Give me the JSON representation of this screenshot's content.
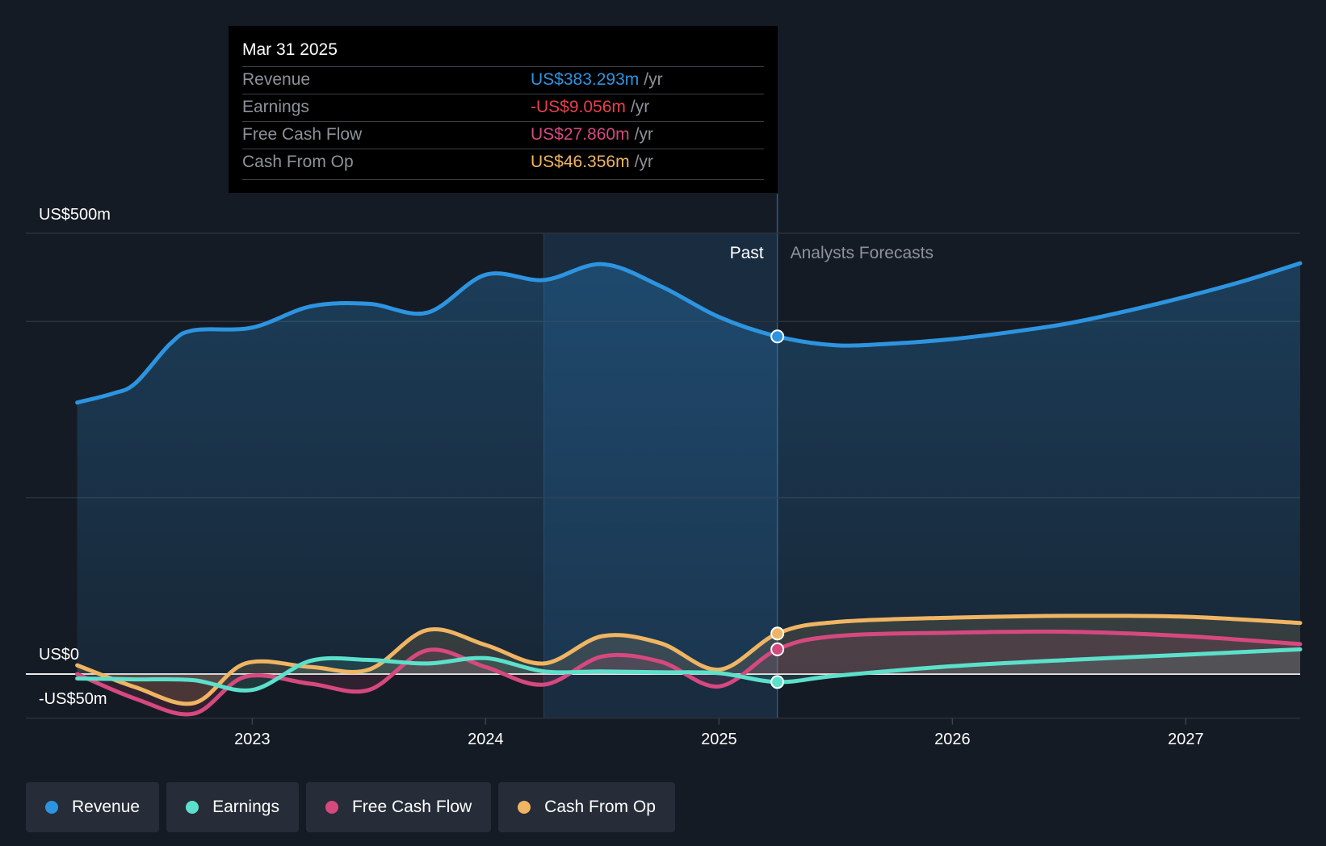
{
  "tooltip": {
    "date": "Mar 31 2025",
    "rows": [
      {
        "label": "Revenue",
        "value": "US$383.293m",
        "unit": "/yr",
        "color": "#2d94e0"
      },
      {
        "label": "Earnings",
        "value": "-US$9.056m",
        "unit": "/yr",
        "color": "#e8414d"
      },
      {
        "label": "Free Cash Flow",
        "value": "US$27.860m",
        "unit": "/yr",
        "color": "#d5497f"
      },
      {
        "label": "Cash From Op",
        "value": "US$46.356m",
        "unit": "/yr",
        "color": "#f0b563"
      }
    ]
  },
  "legend": [
    {
      "label": "Revenue",
      "color": "#2d94e0"
    },
    {
      "label": "Earnings",
      "color": "#5ce0cb"
    },
    {
      "label": "Free Cash Flow",
      "color": "#d5497f"
    },
    {
      "label": "Cash From Op",
      "color": "#f0b563"
    }
  ],
  "chart_data": {
    "type": "line",
    "y_labels": [
      "US$500m",
      "US$0",
      "-US$50m"
    ],
    "ylim": [
      -50,
      500
    ],
    "y_gridlines": [
      500,
      400,
      200,
      0,
      -50
    ],
    "x_ticks": [
      2023,
      2024,
      2025,
      2026,
      2027
    ],
    "xlim": [
      2022.03,
      2027.49
    ],
    "past_label": "Past",
    "forecast_label": "Analysts Forecasts",
    "past_end": 2025.25,
    "shaded_past_start": 2024.25,
    "series": [
      {
        "name": "Revenue",
        "color": "#2d94e0",
        "x": [
          2022.25,
          2022.4,
          2022.5,
          2022.65,
          2022.75,
          2023.0,
          2023.25,
          2023.5,
          2023.75,
          2024.0,
          2024.25,
          2024.5,
          2024.75,
          2025.0,
          2025.25,
          2025.5,
          2025.75,
          2026.0,
          2026.25,
          2026.5,
          2026.75,
          2027.0,
          2027.25,
          2027.49
        ],
        "y": [
          308,
          318,
          330,
          375,
          390,
          393,
          417,
          420,
          410,
          453,
          447,
          465,
          440,
          405,
          383,
          373,
          375,
          380,
          388,
          398,
          412,
          428,
          446,
          466
        ]
      },
      {
        "name": "Earnings",
        "color": "#5ce0cb",
        "x": [
          2022.25,
          2022.5,
          2022.75,
          2023.0,
          2023.25,
          2023.5,
          2023.75,
          2024.0,
          2024.25,
          2024.5,
          2024.75,
          2025.0,
          2025.25,
          2025.5,
          2026.0,
          2026.5,
          2027.0,
          2027.49
        ],
        "y": [
          -5,
          -6,
          -7,
          -18,
          15,
          16,
          12,
          18,
          3,
          3,
          2,
          1,
          -9,
          -2,
          9,
          16,
          22,
          28
        ]
      },
      {
        "name": "Free Cash Flow",
        "color": "#d5497f",
        "x": [
          2022.25,
          2022.5,
          2022.75,
          2022.97,
          2023.25,
          2023.5,
          2023.75,
          2024.0,
          2024.25,
          2024.5,
          2024.75,
          2025.0,
          2025.25,
          2025.5,
          2026.0,
          2026.5,
          2027.0,
          2027.49
        ],
        "y": [
          0,
          -28,
          -45,
          -3,
          -11,
          -18,
          27,
          8,
          -12,
          20,
          14,
          -14,
          28,
          43,
          47,
          48,
          43,
          34
        ]
      },
      {
        "name": "Cash From Op",
        "color": "#f0b563",
        "x": [
          2022.25,
          2022.5,
          2022.75,
          2022.97,
          2023.25,
          2023.5,
          2023.75,
          2024.0,
          2024.25,
          2024.5,
          2024.75,
          2025.0,
          2025.25,
          2025.5,
          2026.0,
          2026.5,
          2027.0,
          2027.49
        ],
        "y": [
          10,
          -15,
          -33,
          12,
          8,
          5,
          50,
          33,
          12,
          43,
          35,
          5,
          46,
          59,
          64,
          66,
          65,
          58
        ]
      }
    ]
  }
}
